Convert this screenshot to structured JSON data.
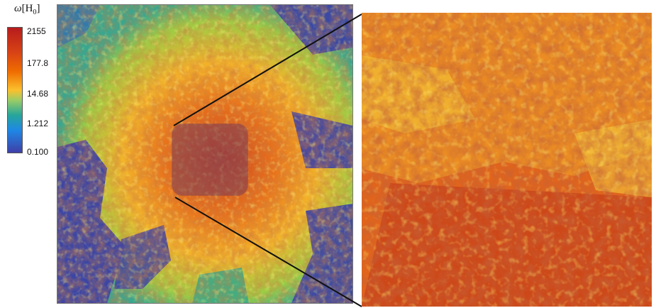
{
  "colorbar": {
    "symbol": "ω",
    "unit": "H",
    "unit_sub": "0",
    "ticks": [
      "2155",
      "177.8",
      "14.68",
      "1.212",
      "0.100"
    ],
    "scale": "log",
    "colors": [
      "#c62828",
      "#ef6c00",
      "#fdd835",
      "#66bb6a",
      "#26a69a",
      "#1e88e5",
      "#3f3fa8"
    ]
  },
  "panels": {
    "left": {
      "name": "full-domain-vorticity-map"
    },
    "right": {
      "name": "zoomed-vorticity-map"
    }
  }
}
